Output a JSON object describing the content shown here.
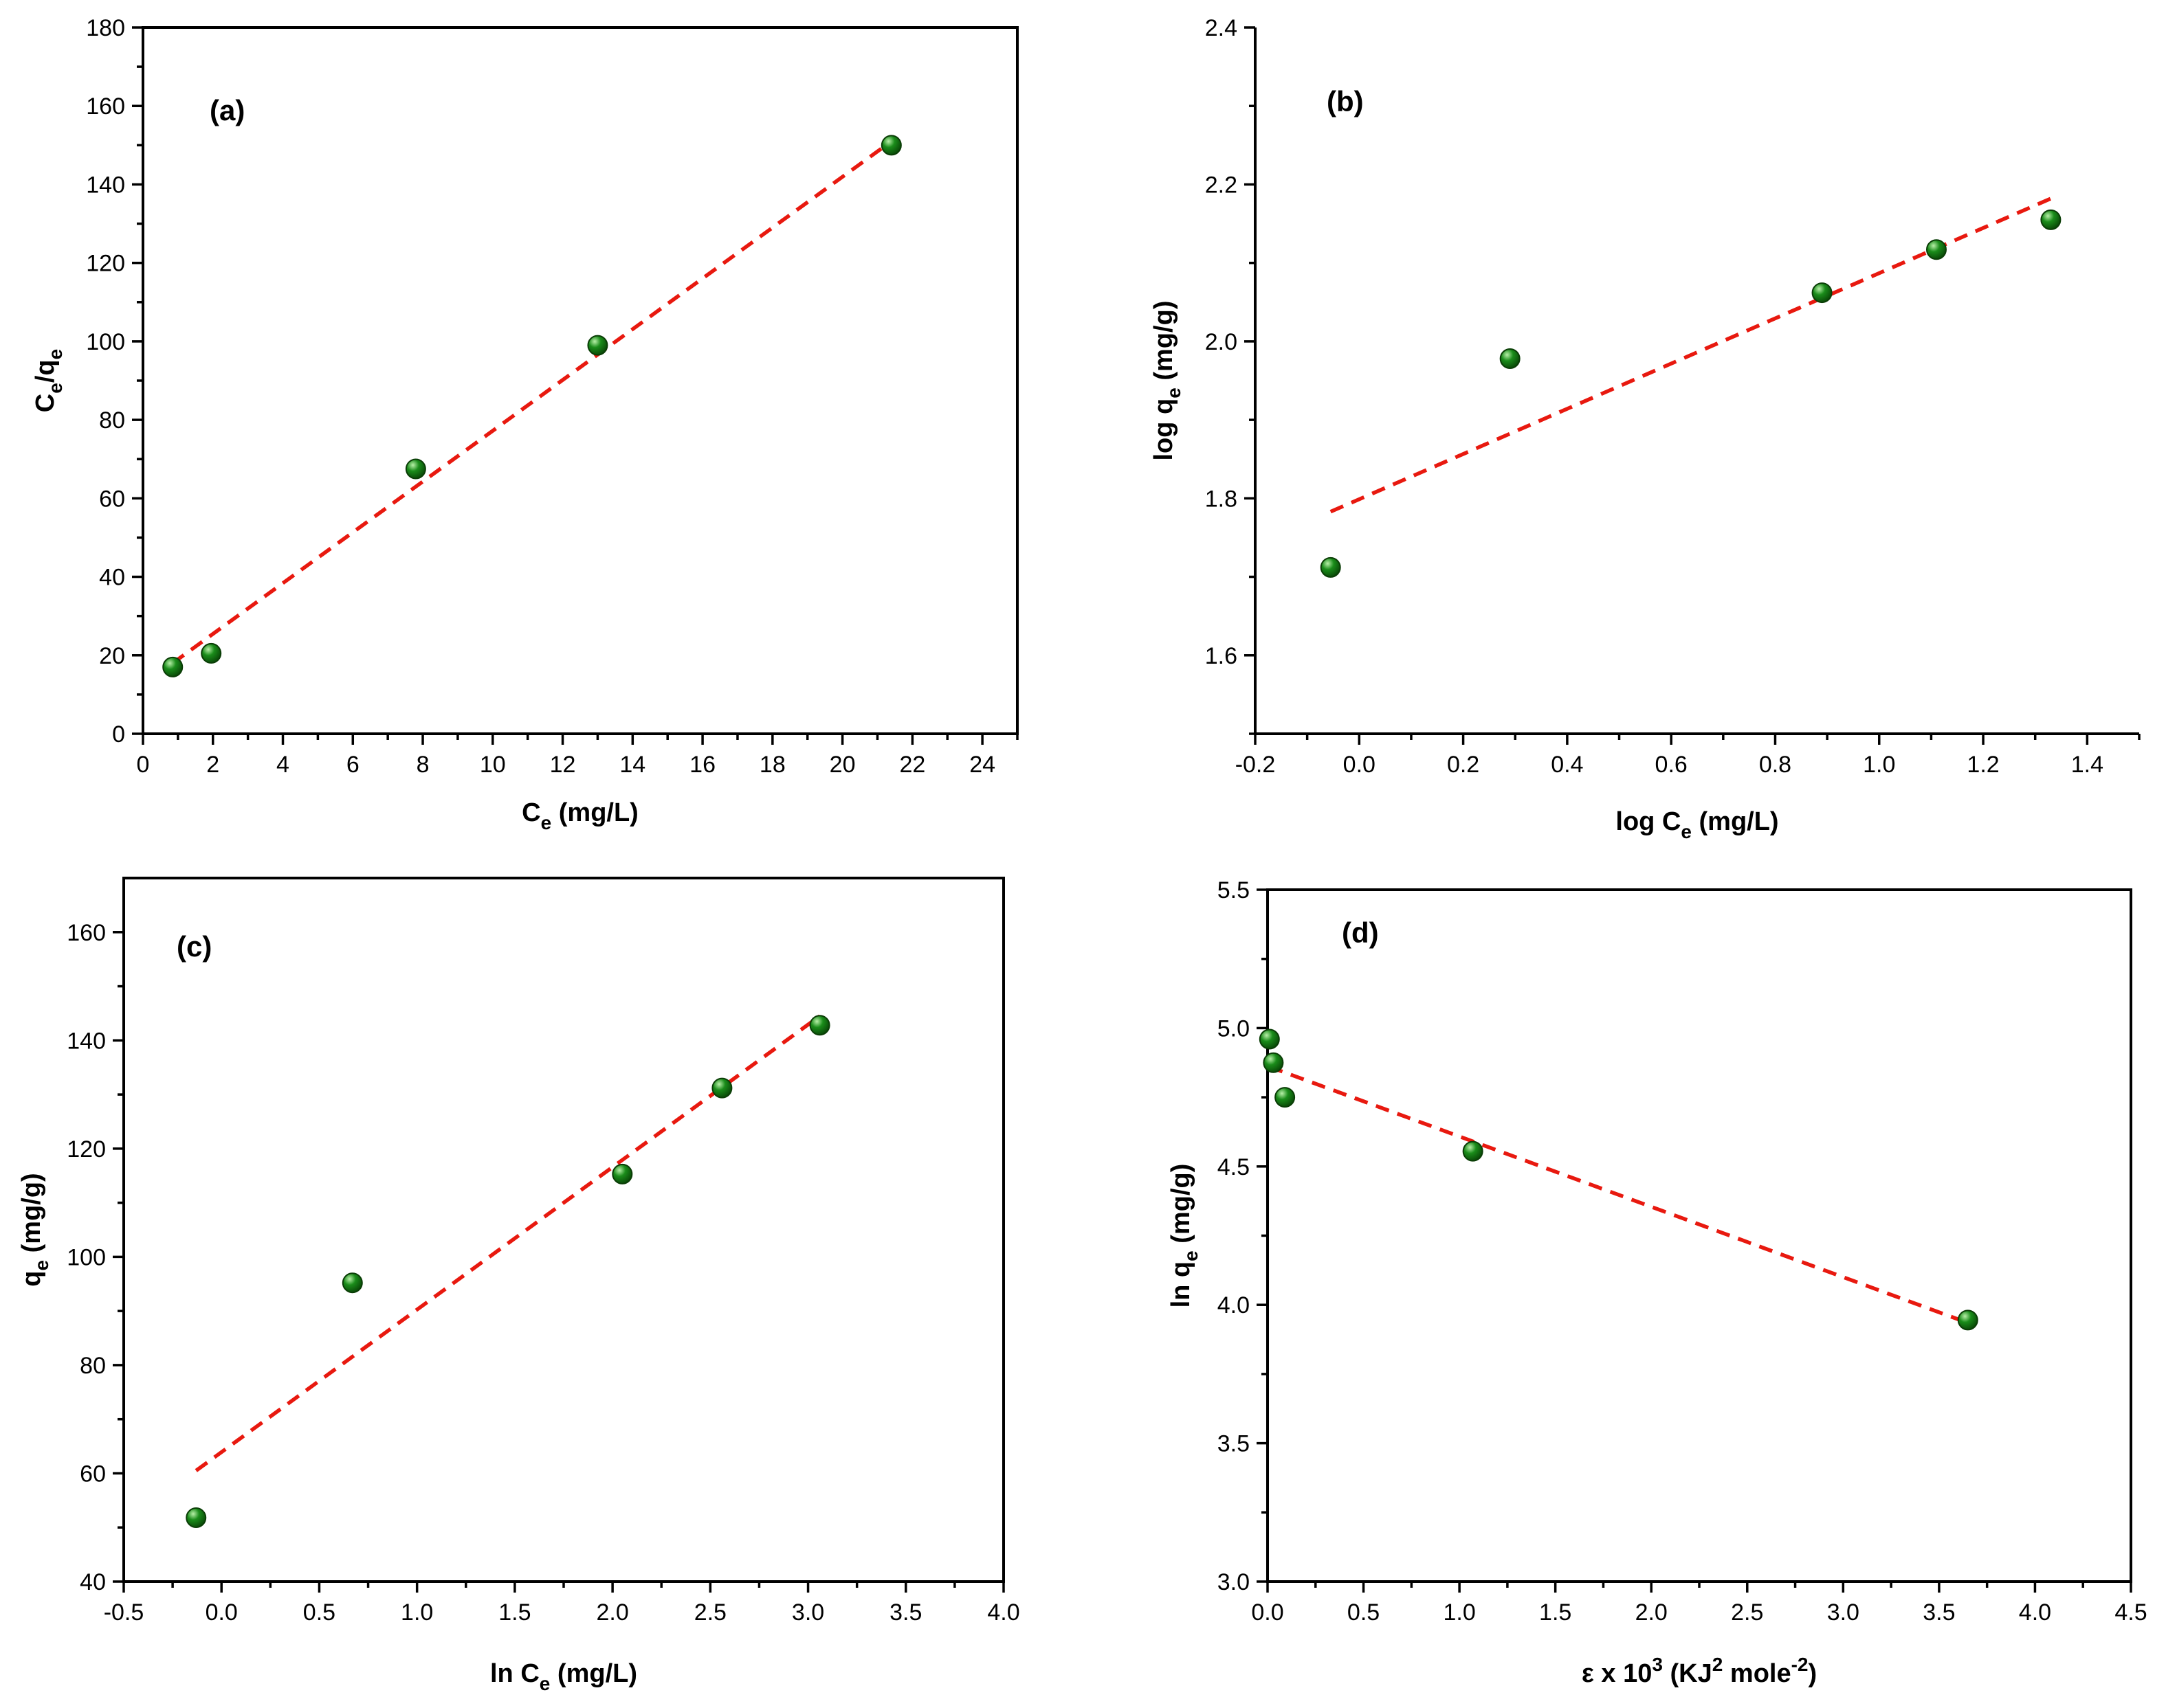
{
  "colors": {
    "point_fill": "#1a8c1a",
    "point_highlight": "#b8f0a8",
    "point_dark": "#0a4d08",
    "fit_line": "#e8190f",
    "axes": "#000000"
  },
  "chart_data": [
    {
      "id": "a",
      "type": "scatter",
      "panel_label": "(a)",
      "xlabel": {
        "main": "C",
        "sub": "e",
        "tail": " (mg/L)"
      },
      "ylabel": {
        "main": "C",
        "sub": "e",
        "mid": "/q",
        "sub2": "e"
      },
      "xlim": [
        0,
        25
      ],
      "ylim": [
        0,
        180
      ],
      "xticks": [
        0,
        2,
        4,
        6,
        8,
        10,
        12,
        14,
        16,
        18,
        20,
        22,
        24
      ],
      "xtick_labels": [
        "0",
        "2",
        "4",
        "6",
        "8",
        "10",
        "12",
        "14",
        "16",
        "18",
        "20",
        "22",
        "24"
      ],
      "yticks": [
        0,
        20,
        40,
        60,
        80,
        100,
        120,
        140,
        160,
        180
      ],
      "ytick_labels": [
        "0",
        "20",
        "40",
        "60",
        "80",
        "100",
        "120",
        "140",
        "160",
        "180"
      ],
      "points": {
        "x": [
          0.85,
          1.95,
          7.8,
          13.0,
          21.4
        ],
        "y": [
          17,
          20.5,
          67.5,
          99,
          150
        ]
      },
      "fit_line": {
        "x": [
          0.85,
          21.4
        ],
        "y": [
          18,
          151
        ]
      }
    },
    {
      "id": "b",
      "type": "scatter",
      "panel_label": "(b)",
      "xlabel": {
        "main": "log C",
        "sub": "e",
        "tail": " (mg/L)"
      },
      "ylabel": {
        "main": "log q",
        "sub": "e",
        "tail": " (mg/g)"
      },
      "xlim": [
        -0.2,
        1.5
      ],
      "ylim": [
        1.5,
        2.4
      ],
      "xticks": [
        -0.2,
        0.0,
        0.2,
        0.4,
        0.6,
        0.8,
        1.0,
        1.2,
        1.4
      ],
      "xtick_labels": [
        "-0.2",
        "0.0",
        "0.2",
        "0.4",
        "0.6",
        "0.8",
        "1.0",
        "1.2",
        "1.4"
      ],
      "yticks": [
        1.6,
        1.8,
        2.0,
        2.2,
        2.4
      ],
      "ytick_labels": [
        "1.6",
        "1.8",
        "2.0",
        "2.2",
        "2.4"
      ],
      "points": {
        "x": [
          -0.055,
          0.29,
          0.89,
          1.11,
          1.33
        ],
        "y": [
          1.712,
          1.978,
          2.062,
          2.117,
          2.155
        ]
      },
      "fit_line": {
        "x": [
          -0.055,
          1.33
        ],
        "y": [
          1.783,
          2.182
        ]
      }
    },
    {
      "id": "c",
      "type": "scatter",
      "panel_label": "(c)",
      "xlabel": {
        "main": "ln C",
        "sub": "e",
        "tail": " (mg/L)"
      },
      "ylabel": {
        "main": "q",
        "sub": "e",
        "tail": " (mg/g)"
      },
      "xlim": [
        -0.5,
        4.0
      ],
      "ylim": [
        40,
        170
      ],
      "xticks": [
        -0.5,
        0.0,
        0.5,
        1.0,
        1.5,
        2.0,
        2.5,
        3.0,
        3.5,
        4.0
      ],
      "xtick_labels": [
        "-0.5",
        "0.0",
        "0.5",
        "1.0",
        "1.5",
        "2.0",
        "2.5",
        "3.0",
        "3.5",
        "4.0"
      ],
      "yticks": [
        40,
        60,
        80,
        100,
        120,
        140,
        160
      ],
      "ytick_labels": [
        "40",
        "60",
        "80",
        "100",
        "120",
        "140",
        "160"
      ],
      "points": {
        "x": [
          -0.13,
          0.67,
          2.05,
          2.56,
          3.06
        ],
        "y": [
          51.8,
          95.2,
          115.3,
          131.2,
          142.8
        ]
      },
      "fit_line": {
        "x": [
          -0.13,
          3.06
        ],
        "y": [
          60.5,
          144.5
        ]
      }
    },
    {
      "id": "d",
      "type": "scatter",
      "panel_label": "(d)",
      "xlabel": {
        "main": "ε x 10",
        "sup": "3",
        "mid": " (KJ",
        "sup2": "2",
        "tail": " mole",
        "sup3": "-2",
        "end": ")"
      },
      "ylabel": {
        "main": "ln q",
        "sub": "e",
        "tail": " (mg/g)"
      },
      "xlim": [
        0,
        4.5
      ],
      "ylim": [
        3.0,
        5.5
      ],
      "xticks": [
        0.0,
        0.5,
        1.0,
        1.5,
        2.0,
        2.5,
        3.0,
        3.5,
        4.0,
        4.5
      ],
      "xtick_labels": [
        "0.0",
        "0.5",
        "1.0",
        "1.5",
        "2.0",
        "2.5",
        "3.0",
        "3.5",
        "4.0",
        "4.5"
      ],
      "yticks": [
        3.0,
        3.5,
        4.0,
        4.5,
        5.0,
        5.5
      ],
      "ytick_labels": [
        "3.0",
        "3.5",
        "4.0",
        "4.5",
        "5.0",
        "5.5"
      ],
      "points": {
        "x": [
          0.01,
          0.03,
          0.09,
          1.07,
          3.65
        ],
        "y": [
          4.96,
          4.875,
          4.75,
          4.555,
          3.945
        ]
      },
      "fit_line": {
        "x": [
          0.01,
          3.65
        ],
        "y": [
          4.86,
          3.935
        ]
      }
    }
  ]
}
